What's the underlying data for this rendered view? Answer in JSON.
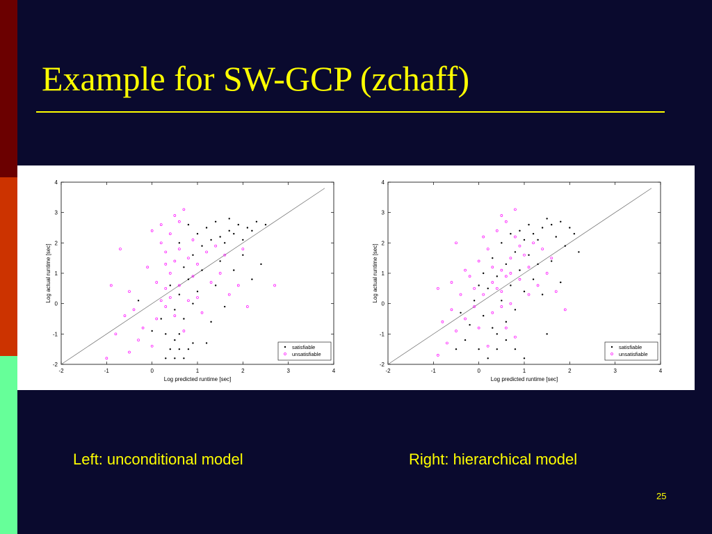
{
  "slide": {
    "title": "Example for SW-GCP (zchaff)",
    "page_number": "25",
    "captions": {
      "left": "Left: unconditional model",
      "right": "Right: hierarchical model"
    },
    "colors": {
      "background": "#0a0a2e",
      "accent": "#ffff00",
      "stripe_top": "#6b0000",
      "stripe_mid": "#cc3300",
      "stripe_bottom": "#66ff99"
    }
  },
  "chart_data": [
    {
      "type": "scatter",
      "xlabel": "Log predicted runtime [sec]",
      "ylabel": "Log actual runtime [sec]",
      "xlim": [
        -2,
        4
      ],
      "ylim": [
        -2,
        4
      ],
      "xticks": [
        "-2",
        "-1",
        "0",
        "1",
        "2",
        "3",
        "4"
      ],
      "yticks": [
        "-2",
        "-1",
        "0",
        "1",
        "2",
        "3",
        "4"
      ],
      "reference_line": [
        [
          -2,
          -2
        ],
        [
          3.8,
          3.8
        ]
      ],
      "legend_position": "bottom-right",
      "series": [
        {
          "name": "satisfiable",
          "color": "#000000",
          "marker": "dot",
          "points": [
            [
              0.3,
              -1.8
            ],
            [
              0.5,
              -1.8
            ],
            [
              0.7,
              -1.8
            ],
            [
              0.6,
              -1.5
            ],
            [
              0.4,
              -1.5
            ],
            [
              0.8,
              -1.5
            ],
            [
              0.5,
              -1.2
            ],
            [
              0.3,
              -1.0
            ],
            [
              0.9,
              -1.3
            ],
            [
              1.2,
              -1.3
            ],
            [
              0.6,
              -1.0
            ],
            [
              0.7,
              -0.5
            ],
            [
              0.5,
              -0.2
            ],
            [
              0.6,
              0.3
            ],
            [
              0.8,
              0.8
            ],
            [
              1.0,
              0.4
            ],
            [
              0.7,
              1.2
            ],
            [
              0.9,
              1.6
            ],
            [
              1.1,
              1.9
            ],
            [
              1.3,
              2.1
            ],
            [
              1.5,
              2.2
            ],
            [
              1.7,
              2.4
            ],
            [
              1.9,
              2.6
            ],
            [
              2.1,
              2.5
            ],
            [
              2.3,
              2.7
            ],
            [
              1.2,
              2.5
            ],
            [
              1.4,
              2.7
            ],
            [
              1.6,
              2.0
            ],
            [
              1.8,
              2.3
            ],
            [
              2.0,
              2.1
            ],
            [
              2.2,
              2.4
            ],
            [
              1.0,
              2.3
            ],
            [
              0.8,
              2.6
            ],
            [
              1.5,
              1.4
            ],
            [
              1.8,
              1.1
            ],
            [
              2.0,
              1.6
            ],
            [
              2.2,
              0.8
            ],
            [
              1.4,
              0.6
            ],
            [
              1.6,
              -0.1
            ],
            [
              1.3,
              -0.6
            ],
            [
              2.4,
              1.3
            ],
            [
              1.1,
              1.1
            ],
            [
              0.9,
              0.0
            ],
            [
              0.4,
              0.6
            ],
            [
              0.2,
              -0.5
            ],
            [
              0.0,
              -0.9
            ],
            [
              -0.3,
              0.1
            ],
            [
              1.7,
              2.8
            ],
            [
              2.5,
              2.6
            ],
            [
              0.6,
              2.0
            ]
          ]
        },
        {
          "name": "unsatisfiable",
          "color": "#ff00ff",
          "marker": "circle",
          "points": [
            [
              -1.0,
              -1.8
            ],
            [
              -0.5,
              -1.6
            ],
            [
              -0.3,
              -1.2
            ],
            [
              0.0,
              -1.4
            ],
            [
              -0.2,
              -0.8
            ],
            [
              0.1,
              -0.5
            ],
            [
              -0.5,
              0.4
            ],
            [
              -0.7,
              1.8
            ],
            [
              -0.9,
              0.6
            ],
            [
              0.2,
              0.1
            ],
            [
              0.3,
              0.5
            ],
            [
              0.4,
              1.0
            ],
            [
              0.5,
              1.4
            ],
            [
              0.6,
              1.8
            ],
            [
              0.4,
              2.3
            ],
            [
              0.6,
              2.7
            ],
            [
              0.7,
              3.1
            ],
            [
              0.5,
              2.9
            ],
            [
              0.3,
              1.7
            ],
            [
              0.2,
              2.0
            ],
            [
              0.8,
              1.5
            ],
            [
              0.9,
              0.9
            ],
            [
              1.0,
              0.2
            ],
            [
              1.1,
              -0.3
            ],
            [
              1.3,
              0.7
            ],
            [
              1.5,
              1.0
            ],
            [
              1.7,
              0.3
            ],
            [
              1.9,
              0.6
            ],
            [
              2.1,
              -0.1
            ],
            [
              0.7,
              -0.9
            ],
            [
              0.5,
              -0.4
            ],
            [
              0.3,
              -0.1
            ],
            [
              0.1,
              0.7
            ],
            [
              -0.1,
              1.2
            ],
            [
              0.0,
              2.4
            ],
            [
              0.2,
              2.6
            ],
            [
              1.2,
              1.7
            ],
            [
              1.6,
              1.6
            ],
            [
              2.0,
              1.8
            ],
            [
              2.7,
              0.6
            ],
            [
              -0.6,
              -0.4
            ],
            [
              -0.8,
              -1.0
            ],
            [
              0.4,
              0.2
            ],
            [
              0.6,
              0.6
            ],
            [
              0.8,
              0.1
            ],
            [
              1.0,
              1.3
            ],
            [
              0.9,
              2.1
            ],
            [
              1.4,
              1.9
            ],
            [
              -0.4,
              -0.2
            ],
            [
              0.3,
              1.3
            ]
          ]
        }
      ]
    },
    {
      "type": "scatter",
      "xlabel": "Log predicted runtime [sec]",
      "ylabel": "Log actual runtime [sec]",
      "xlim": [
        -2,
        4
      ],
      "ylim": [
        -2,
        4
      ],
      "xticks": [
        "-2",
        "-1",
        "0",
        "1",
        "2",
        "3",
        "4"
      ],
      "yticks": [
        "-2",
        "-1",
        "0",
        "1",
        "2",
        "3",
        "4"
      ],
      "reference_line": [
        [
          -2,
          -2
        ],
        [
          3.8,
          3.8
        ]
      ],
      "legend_position": "bottom-right",
      "series": [
        {
          "name": "satisfiable",
          "color": "#000000",
          "marker": "dot",
          "points": [
            [
              -0.5,
              -1.5
            ],
            [
              -0.3,
              -1.2
            ],
            [
              0.0,
              -1.5
            ],
            [
              0.2,
              -1.8
            ],
            [
              0.4,
              -1.5
            ],
            [
              0.6,
              -1.2
            ],
            [
              0.8,
              -1.5
            ],
            [
              1.0,
              -1.8
            ],
            [
              0.3,
              -0.8
            ],
            [
              0.1,
              -0.4
            ],
            [
              -0.1,
              0.1
            ],
            [
              0.2,
              0.5
            ],
            [
              0.4,
              0.9
            ],
            [
              0.6,
              1.3
            ],
            [
              0.8,
              1.7
            ],
            [
              1.0,
              2.1
            ],
            [
              1.2,
              2.3
            ],
            [
              1.4,
              2.5
            ],
            [
              1.6,
              2.6
            ],
            [
              1.8,
              2.7
            ],
            [
              2.0,
              2.5
            ],
            [
              1.5,
              2.8
            ],
            [
              1.3,
              2.1
            ],
            [
              1.1,
              1.6
            ],
            [
              0.9,
              1.1
            ],
            [
              0.7,
              0.6
            ],
            [
              0.5,
              0.1
            ],
            [
              0.9,
              2.4
            ],
            [
              1.7,
              2.2
            ],
            [
              1.9,
              1.9
            ],
            [
              1.2,
              0.8
            ],
            [
              1.4,
              0.3
            ],
            [
              1.6,
              1.4
            ],
            [
              1.8,
              0.7
            ],
            [
              0.6,
              -0.6
            ],
            [
              0.8,
              -0.2
            ],
            [
              1.0,
              0.4
            ],
            [
              -0.2,
              -0.7
            ],
            [
              -0.4,
              -0.3
            ],
            [
              0.3,
              1.5
            ],
            [
              0.5,
              2.0
            ],
            [
              0.7,
              2.3
            ],
            [
              1.1,
              2.6
            ],
            [
              2.1,
              2.3
            ],
            [
              1.3,
              1.3
            ],
            [
              0.4,
              -1.0
            ],
            [
              0.0,
              0.6
            ],
            [
              2.2,
              1.7
            ],
            [
              1.5,
              -1.0
            ],
            [
              0.1,
              1.0
            ]
          ]
        },
        {
          "name": "unsatisfiable",
          "color": "#ff00ff",
          "marker": "circle",
          "points": [
            [
              -0.9,
              -1.7
            ],
            [
              -0.7,
              -1.3
            ],
            [
              -0.5,
              -0.9
            ],
            [
              -0.3,
              -0.5
            ],
            [
              -0.1,
              -0.1
            ],
            [
              0.1,
              0.3
            ],
            [
              0.3,
              0.7
            ],
            [
              0.5,
              1.1
            ],
            [
              0.7,
              1.5
            ],
            [
              0.9,
              1.9
            ],
            [
              0.4,
              2.4
            ],
            [
              0.6,
              2.7
            ],
            [
              0.8,
              3.1
            ],
            [
              0.5,
              2.9
            ],
            [
              0.2,
              1.8
            ],
            [
              0.0,
              1.4
            ],
            [
              -0.2,
              0.9
            ],
            [
              -0.4,
              0.3
            ],
            [
              -0.6,
              -0.2
            ],
            [
              -0.8,
              -0.6
            ],
            [
              0.3,
              -0.3
            ],
            [
              0.5,
              0.4
            ],
            [
              0.7,
              0.0
            ],
            [
              0.9,
              0.8
            ],
            [
              1.1,
              1.2
            ],
            [
              1.3,
              0.6
            ],
            [
              1.5,
              1.0
            ],
            [
              1.7,
              0.4
            ],
            [
              1.9,
              -0.2
            ],
            [
              1.2,
              2.0
            ],
            [
              -0.5,
              2.0
            ],
            [
              -0.9,
              0.5
            ],
            [
              0.1,
              2.2
            ],
            [
              0.6,
              -0.8
            ],
            [
              0.8,
              -1.1
            ],
            [
              0.2,
              -1.4
            ],
            [
              1.0,
              1.6
            ],
            [
              1.4,
              1.8
            ],
            [
              0.4,
              0.5
            ],
            [
              0.6,
              0.9
            ],
            [
              -0.3,
              1.1
            ],
            [
              -0.6,
              0.7
            ],
            [
              0.0,
              -0.8
            ],
            [
              1.6,
              1.5
            ],
            [
              0.8,
              2.2
            ],
            [
              0.3,
              1.2
            ],
            [
              -0.1,
              0.5
            ],
            [
              1.1,
              0.3
            ],
            [
              0.5,
              -0.1
            ],
            [
              0.7,
              1.0
            ]
          ]
        }
      ]
    }
  ]
}
